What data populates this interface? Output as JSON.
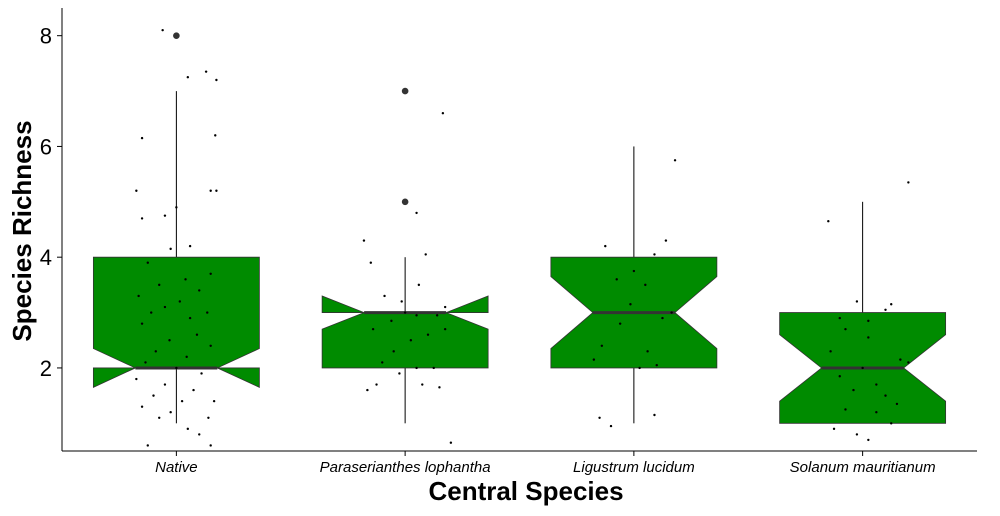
{
  "chart_data": {
    "type": "boxplot",
    "xlabel": "Central Species",
    "ylabel": "Species Richness",
    "ylim": [
      0.5,
      8.5
    ],
    "yticks": [
      2,
      4,
      6,
      8
    ],
    "categories": [
      "Native",
      "Paraserianthes lophantha",
      "Ligustrum lucidum",
      "Solanum mauritianum"
    ],
    "fill_color": "#008B00",
    "grid": false,
    "boxes": [
      {
        "category": "Native",
        "whisker_low": 1,
        "q1": 2,
        "median": 2,
        "q3": 4,
        "whisker_high": 7,
        "notch_low": 1.65,
        "notch_high": 2.35,
        "outliers": [
          8
        ]
      },
      {
        "category": "Paraserianthes lophantha",
        "whisker_low": 1,
        "q1": 2,
        "median": 3,
        "q3": 3,
        "whisker_high": 4,
        "notch_low": 2.7,
        "notch_high": 3.3,
        "outliers": [
          5,
          7
        ]
      },
      {
        "category": "Ligustrum lucidum",
        "whisker_low": 1,
        "q1": 2,
        "median": 3,
        "q3": 4,
        "whisker_high": 6,
        "notch_low": 2.35,
        "notch_high": 3.65,
        "outliers": []
      },
      {
        "category": "Solanum mauritianum",
        "whisker_low": 1,
        "q1": 1,
        "median": 2,
        "q3": 3,
        "whisker_high": 5,
        "notch_low": 1.4,
        "notch_high": 2.6,
        "outliers": []
      }
    ],
    "jitter_points": [
      {
        "category": "Native",
        "points": [
          [
            -0.25,
            0.6
          ],
          [
            0.2,
            0.8
          ],
          [
            0.3,
            0.6
          ],
          [
            0.1,
            0.9
          ],
          [
            -0.15,
            1.1
          ],
          [
            -0.05,
            1.2
          ],
          [
            0.28,
            1.1
          ],
          [
            -0.3,
            1.3
          ],
          [
            0.05,
            1.4
          ],
          [
            -0.2,
            1.5
          ],
          [
            0.33,
            1.4
          ],
          [
            -0.1,
            1.7
          ],
          [
            0.15,
            1.6
          ],
          [
            -0.35,
            1.8
          ],
          [
            0.22,
            1.9
          ],
          [
            0.0,
            2.0
          ],
          [
            -0.27,
            2.1
          ],
          [
            0.09,
            2.2
          ],
          [
            -0.18,
            2.3
          ],
          [
            0.3,
            2.4
          ],
          [
            -0.06,
            2.5
          ],
          [
            0.18,
            2.6
          ],
          [
            -0.3,
            2.8
          ],
          [
            0.12,
            2.9
          ],
          [
            -0.22,
            3.0
          ],
          [
            0.27,
            3.0
          ],
          [
            -0.1,
            3.1
          ],
          [
            0.03,
            3.2
          ],
          [
            -0.33,
            3.3
          ],
          [
            0.2,
            3.4
          ],
          [
            -0.15,
            3.5
          ],
          [
            0.08,
            3.6
          ],
          [
            0.3,
            3.7
          ],
          [
            -0.25,
            3.9
          ],
          [
            0.12,
            4.2
          ],
          [
            -0.05,
            4.15
          ],
          [
            -0.3,
            4.7
          ],
          [
            -0.1,
            4.75
          ],
          [
            0.0,
            4.9
          ],
          [
            -0.35,
            5.2
          ],
          [
            0.3,
            5.2
          ],
          [
            0.35,
            5.2
          ],
          [
            -0.3,
            6.15
          ],
          [
            0.34,
            6.2
          ],
          [
            0.1,
            7.25
          ],
          [
            0.26,
            7.35
          ],
          [
            0.35,
            7.2
          ],
          [
            -0.12,
            8.1
          ]
        ]
      },
      {
        "category": "Paraserianthes lophantha",
        "points": [
          [
            -0.33,
            1.6
          ],
          [
            -0.25,
            1.7
          ],
          [
            0.15,
            1.7
          ],
          [
            0.3,
            1.65
          ],
          [
            -0.05,
            1.9
          ],
          [
            0.1,
            2.0
          ],
          [
            0.25,
            2.0
          ],
          [
            -0.2,
            2.1
          ],
          [
            -0.1,
            2.3
          ],
          [
            0.05,
            2.5
          ],
          [
            0.2,
            2.6
          ],
          [
            -0.28,
            2.7
          ],
          [
            0.35,
            2.7
          ],
          [
            -0.12,
            2.85
          ],
          [
            0.1,
            2.95
          ],
          [
            0.28,
            2.95
          ],
          [
            0.0,
            3.0
          ],
          [
            -0.03,
            3.2
          ],
          [
            -0.18,
            3.3
          ],
          [
            0.35,
            3.1
          ],
          [
            0.12,
            3.5
          ],
          [
            -0.3,
            3.9
          ],
          [
            0.18,
            4.05
          ],
          [
            -0.36,
            4.3
          ],
          [
            0.1,
            4.8
          ],
          [
            0.33,
            6.6
          ],
          [
            0.4,
            0.65
          ]
        ]
      },
      {
        "category": "Ligustrum lucidum",
        "points": [
          [
            -0.3,
            1.1
          ],
          [
            -0.2,
            0.95
          ],
          [
            0.18,
            1.15
          ],
          [
            -0.35,
            2.15
          ],
          [
            -0.28,
            2.4
          ],
          [
            0.05,
            2.0
          ],
          [
            0.2,
            2.05
          ],
          [
            0.12,
            2.3
          ],
          [
            -0.12,
            2.8
          ],
          [
            0.25,
            2.9
          ],
          [
            0.33,
            3.0
          ],
          [
            -0.03,
            3.15
          ],
          [
            0.1,
            3.5
          ],
          [
            -0.15,
            3.6
          ],
          [
            0.0,
            3.75
          ],
          [
            0.18,
            4.05
          ],
          [
            -0.25,
            4.2
          ],
          [
            0.28,
            4.3
          ],
          [
            0.36,
            5.75
          ]
        ]
      },
      {
        "category": "Solanum mauritianum",
        "points": [
          [
            -0.25,
            0.9
          ],
          [
            -0.05,
            0.8
          ],
          [
            0.05,
            0.7
          ],
          [
            0.12,
            1.2
          ],
          [
            0.25,
            1.0
          ],
          [
            -0.15,
            1.25
          ],
          [
            0.2,
            1.5
          ],
          [
            -0.08,
            1.6
          ],
          [
            0.3,
            1.35
          ],
          [
            0.12,
            1.7
          ],
          [
            -0.2,
            1.85
          ],
          [
            0.0,
            2.0
          ],
          [
            0.33,
            2.15
          ],
          [
            0.4,
            2.1
          ],
          [
            -0.28,
            2.3
          ],
          [
            0.05,
            2.55
          ],
          [
            -0.15,
            2.7
          ],
          [
            0.05,
            2.85
          ],
          [
            -0.2,
            2.9
          ],
          [
            0.2,
            3.05
          ],
          [
            0.25,
            3.15
          ],
          [
            -0.05,
            3.2
          ],
          [
            -0.3,
            4.65
          ],
          [
            0.4,
            5.35
          ]
        ]
      }
    ]
  }
}
